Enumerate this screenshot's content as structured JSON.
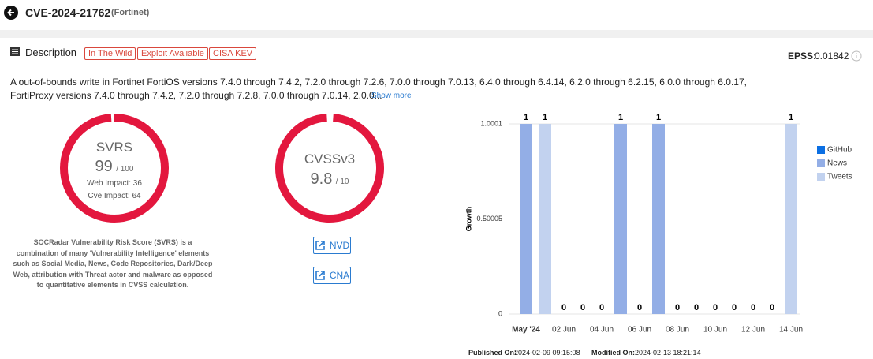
{
  "header": {
    "title": "CVE-2024-21762",
    "vendor": "(Fortinet)"
  },
  "description": {
    "heading": "Description",
    "tags": [
      "In The Wild",
      "Exploit Avaliable",
      "CISA KEV"
    ],
    "epss_label": "EPSS:",
    "epss_value": "0.01842",
    "text_line1": "A out-of-bounds write in Fortinet FortiOS versions 7.4.0 through 7.4.2, 7.2.0 through 7.2.6, 7.0.0 through 7.0.13, 6.4.0 through 6.4.14, 6.2.0 through 6.2.15, 6.0.0 through 6.0.17,",
    "text_line2": "FortiProxy versions 7.4.0 through 7.4.2, 7.2.0 through 7.2.8, 7.0.0 through 7.0.14, 2.0.0...",
    "show_more": "Show more"
  },
  "svrs": {
    "name": "SVRS",
    "score": "99",
    "scale": "/ 100",
    "web_impact": "Web Impact: 36",
    "cve_impact": "Cve Impact: 64",
    "note": "SOCRadar Vulnerability Risk Score (SVRS) is a combination of many 'Vulnerability Intelligence' elements such as Social Media, News, Code Repositories, Dark/Deep Web, attribution with Threat actor and malware as opposed to quantitative elements in CVSS calculation."
  },
  "cvss": {
    "name": "CVSSv3",
    "score": "9.8",
    "scale": "/ 10",
    "buttons": [
      "NVD",
      "CNA"
    ]
  },
  "chart_data": {
    "type": "bar",
    "stacked": true,
    "y_label": "Growth",
    "categories": [
      "May '24",
      null,
      "02 Jun",
      null,
      "04 Jun",
      null,
      "06 Jun",
      null,
      "08 Jun",
      null,
      "10 Jun",
      null,
      "12 Jun",
      null,
      "14 Jun"
    ],
    "series": [
      {
        "name": "GitHub",
        "color": "#0b6fe3",
        "values": [
          0,
          0,
          0,
          0,
          0,
          0,
          0,
          0,
          0,
          0,
          0,
          0,
          0,
          0,
          0
        ]
      },
      {
        "name": "News",
        "color": "#93aee6",
        "values": [
          1,
          0,
          0,
          0,
          0,
          1,
          0,
          1,
          0,
          0,
          0,
          0,
          0,
          0,
          0
        ]
      },
      {
        "name": "Tweets",
        "color": "#c2d2ef",
        "values": [
          0,
          1,
          0,
          0,
          0,
          0,
          0,
          0,
          0,
          0,
          0,
          0,
          0,
          0,
          1
        ]
      }
    ],
    "ylim": [
      0,
      1.0001
    ],
    "yticks": [
      0,
      0.50005,
      1.0001
    ],
    "grid": true,
    "legend": "right"
  },
  "footer": {
    "published_label": "Published On:",
    "published": "2024-02-09 09:15:08",
    "modified_label": "Modified On:",
    "modified": "2024-02-13 18:21:14"
  }
}
